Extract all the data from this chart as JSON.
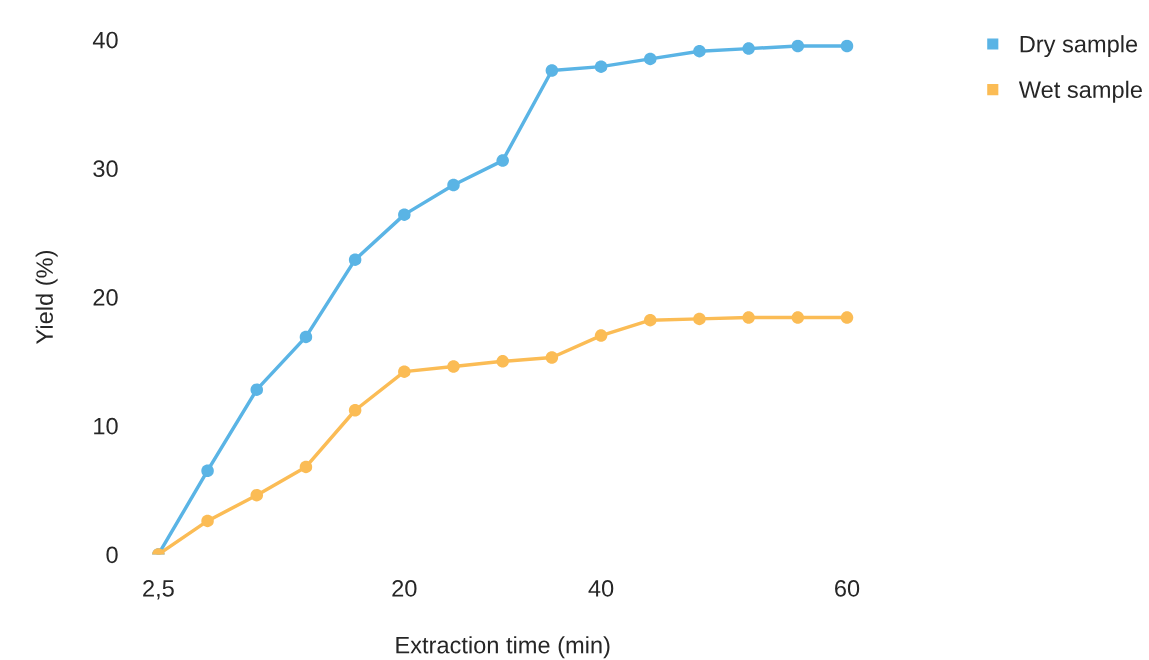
{
  "chart_data": {
    "type": "line",
    "xlabel": "Extraction time (min)",
    "ylabel": "Yield (%)",
    "categories": [
      "2,5",
      null,
      null,
      null,
      null,
      "20",
      null,
      null,
      null,
      "40",
      null,
      null,
      null,
      null,
      "60"
    ],
    "series": [
      {
        "name": "Dry sample",
        "color": "#5ab4e5",
        "values": [
          0,
          6.5,
          12.8,
          16.9,
          22.9,
          26.4,
          28.7,
          30.6,
          37.6,
          37.9,
          38.5,
          39.1,
          39.3,
          39.5,
          39.5
        ]
      },
      {
        "name": "Wet sample",
        "color": "#fbbc55",
        "values": [
          0,
          2.6,
          4.6,
          6.8,
          11.2,
          14.2,
          14.6,
          15.0,
          15.3,
          17.0,
          18.2,
          18.3,
          18.4,
          18.4,
          18.4
        ]
      }
    ],
    "ylim": [
      0,
      40
    ],
    "yticks": [
      0,
      10,
      20,
      30,
      40
    ],
    "legend": "top right",
    "marker": "circle",
    "line_style": "solid",
    "grid": false
  }
}
